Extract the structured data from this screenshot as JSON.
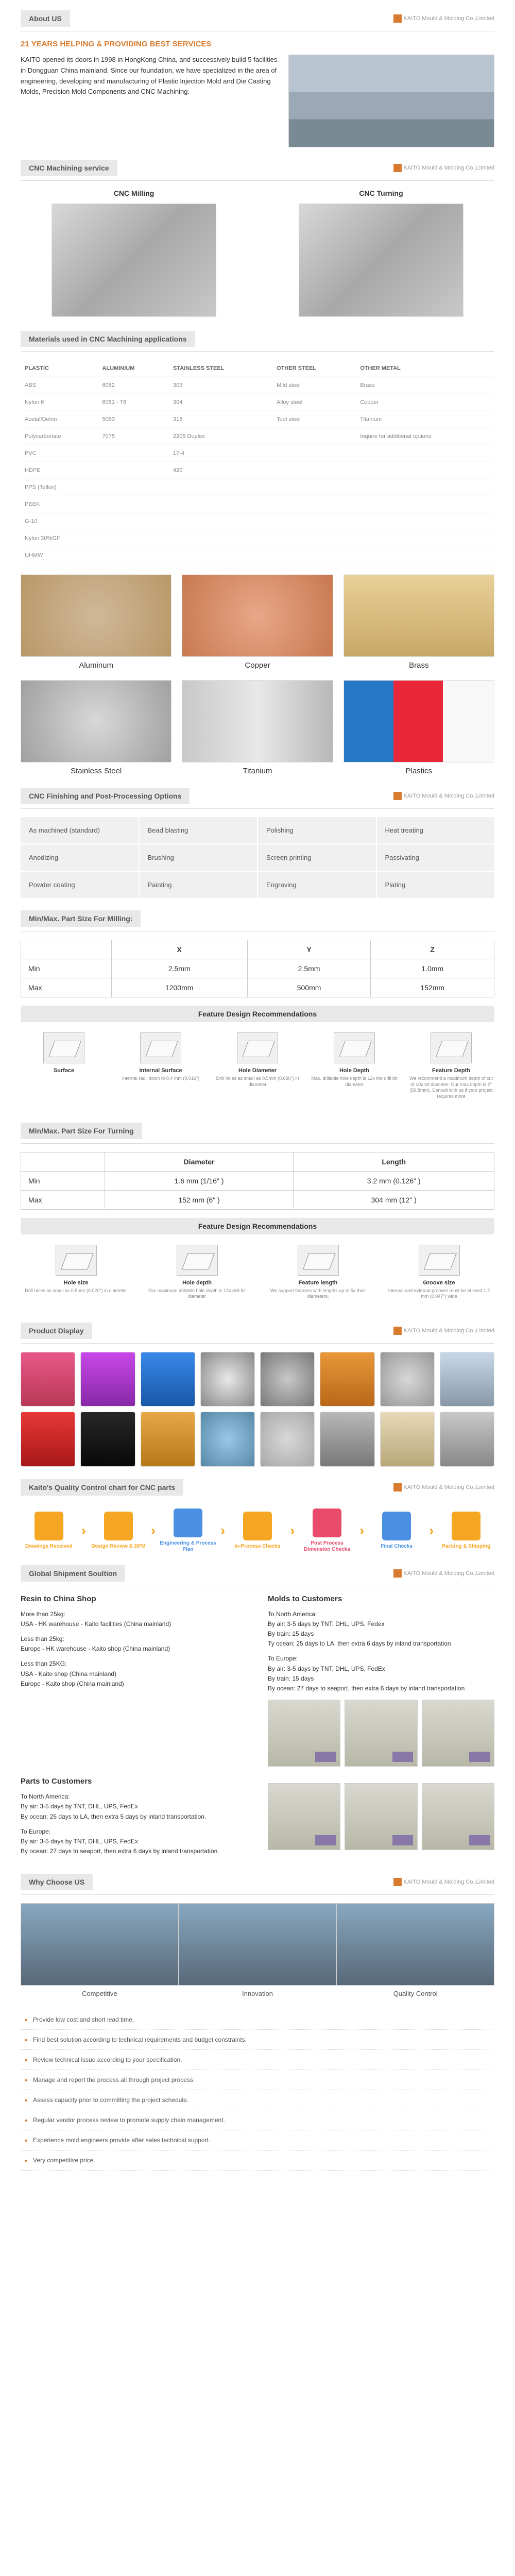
{
  "logo_text": "KAITO Mould & Molding Co.,Limited",
  "about": {
    "title": "About US",
    "subtitle": "21 YEARS HELPING & PROVIDING BEST SERVICES",
    "intro": "KAITO opened its doors in 1998 in HongKong China, and successively build 5 facilities in Dongguan China mainland. Since our foundation, we have specialized in the area of engineering, developing and manufacturing of Plastic Injection Mold and Die Casting Molds, Precision Mold Components and CNC Machining."
  },
  "cnc_service": {
    "title": "CNC Machining service",
    "cols": [
      "CNC Milling",
      "CNC Turning"
    ]
  },
  "materials": {
    "title": "Materials used in CNC Machining applications",
    "headers": [
      "PLASTIC",
      "ALUMINIUM",
      "STAINLESS STEEL",
      "OTHER STEEL",
      "OTHER METAL"
    ],
    "rows": [
      [
        "ABS",
        "6082",
        "303",
        "Mild steel",
        "Brass"
      ],
      [
        "Nylon 6",
        "6061 - T6",
        "304",
        "Alloy steel",
        "Copper"
      ],
      [
        "Acetal/Delrin",
        "5083",
        "316",
        "Tool steel",
        "Titanium"
      ],
      [
        "Polycarbonate",
        "7075",
        "2205 Duplex",
        "",
        "Inquire for additional options"
      ],
      [
        "PVC",
        "",
        "17-4",
        "",
        ""
      ],
      [
        "HDPE",
        "",
        "420",
        "",
        ""
      ],
      [
        "PPS (Teflon)",
        "",
        "",
        "",
        ""
      ],
      [
        "PEEK",
        "",
        "",
        "",
        ""
      ],
      [
        "G-10",
        "",
        "",
        "",
        ""
      ],
      [
        "Nylon 30%GF",
        "",
        "",
        "",
        ""
      ],
      [
        "UHMW",
        "",
        "",
        "",
        ""
      ]
    ],
    "display": [
      "Aluminum",
      "Copper",
      "Brass",
      "Stainless Steel",
      "Titanium",
      "Plastics"
    ]
  },
  "finishing": {
    "title": "CNC Finishing and Post-Processing Options",
    "items": [
      "As machined (standard)",
      "Bead blasting",
      "Polishing",
      "Heat treating",
      "Anodizing",
      "Brushing",
      "Screen printing",
      "Passivating",
      "Powder coating",
      "Painting",
      "Engraving",
      "Plating"
    ]
  },
  "milling": {
    "title": "Min/Max. Part Size For Milling:",
    "headers": [
      "",
      "X",
      "Y",
      "Z"
    ],
    "rows": [
      [
        "Min",
        "2.5mm",
        "2.5mm",
        "1.0mm"
      ],
      [
        "Max",
        "1200mm",
        "500mm",
        "152mm"
      ]
    ],
    "feature_title": "Feature Design Recommendations",
    "features": [
      {
        "label": "Surface",
        "desc": ""
      },
      {
        "label": "Internal Surface",
        "desc": "Internal radii down to 0.4 mm (0.016\")"
      },
      {
        "label": "Hole Diameter",
        "desc": "Drill holes as small as 0.5mm (0.020\") in diameter"
      },
      {
        "label": "Hole Depth",
        "desc": "Max. drillable hole depth is 12x the drill bit diameter"
      },
      {
        "label": "Feature Depth",
        "desc": "We recommend a maximum depth of cut of 10x bit diameter. Our max depth is 2\" (50.8mm). Consult with us if your project requires more"
      }
    ]
  },
  "turning": {
    "title": "Min/Max. Part Size For Turning",
    "headers": [
      "",
      "Diameter",
      "Length"
    ],
    "rows": [
      [
        "Min",
        "1.6 mm (1/16\" )",
        "3.2 mm (0.126\" )"
      ],
      [
        "Max",
        "152 mm (6\" )",
        "304 mm (12\" )"
      ]
    ],
    "feature_title": "Feature Design Recommendations",
    "features": [
      {
        "label": "Hole size",
        "desc": "Drill holes as small as 0.5mm (0.020\") in diameter"
      },
      {
        "label": "Hole depth",
        "desc": "Our maximum drillable hole depth is 12x drill bit diameter"
      },
      {
        "label": "Feature length",
        "desc": "We support features with lengths up to 5x their diameters."
      },
      {
        "label": "Groove size",
        "desc": "Internal and external grooves must be at least 1.2 mm (0.047\") wide"
      }
    ]
  },
  "product_display": {
    "title": "Product Display"
  },
  "qc": {
    "title": "Kaito's Quality Control chart for CNC parts",
    "steps": [
      {
        "label": "Drawings Received",
        "color": "#f5a623"
      },
      {
        "label": "Design Review & DFM",
        "color": "#f5a623"
      },
      {
        "label": "Engineering & Process Plan",
        "color": "#4a90e2"
      },
      {
        "label": "In-Process Checks",
        "color": "#f5a623"
      },
      {
        "label": "Post Process Dimension Checks",
        "color": "#e94b6a"
      },
      {
        "label": "Final Checks",
        "color": "#4a90e2"
      },
      {
        "label": "Packing & Shipping",
        "color": "#f5a623"
      }
    ]
  },
  "shipment": {
    "title": "Global Shipment Soultion",
    "resin": {
      "title": "Resin to China Shop",
      "blocks": [
        "More than 25kg:\nUSA - HK warehouse - Kaito facilities (China mainland)",
        "Less than 25kg:\nEurope - HK warehouse - Kaito shop (China mainland)",
        "Less than 25KG:\nUSA - Kaito shop (China mainland)\nEurope - Kaito shop (China mainland)"
      ]
    },
    "molds": {
      "title": "Molds to Customers",
      "blocks": [
        "To North America:\nBy air: 3-5 days by TNT, DHL, UPS, Fedex\nBy train: 15 days\nTy ocean: 25 days to LA, then extra 6 days by inland transportation",
        "To Europe:\nBy air: 3-5 days by TNT, DHL, UPS, FedEx\nBy train: 15 days\nBy ocean: 27 days to seaport, then extra 6 days by inland transportation"
      ]
    },
    "parts": {
      "title": "Parts to Customers",
      "blocks": [
        "To North America:\nBy air: 3-5 days by TNT, DHL, UPS, FedEx\nBy ocean: 25 days to LA, then extra 5 days by inland transportation.",
        "To Europe:\nBy air: 3-5 days by TNT, DHL, UPS, FedEx\nBy ocean: 27 days to seaport, then extra 6 days by inland transportation."
      ]
    }
  },
  "why": {
    "title": "Why Choose US",
    "cols": [
      "Competitive",
      "Innovation",
      "Quality Control"
    ],
    "bullets": [
      "Provide low cost and short lead time.",
      "Find best solution according to technical requirements and budget constraints.",
      "Review technical issue according to your specification.",
      "Manage and report the process all through project process.",
      "Assess capacity prior to committing the project schedule.",
      "Regular vendor process review to promote supply chain management.",
      "Experience mold engineers provide after sales technical support.",
      "Very competitive price."
    ]
  }
}
